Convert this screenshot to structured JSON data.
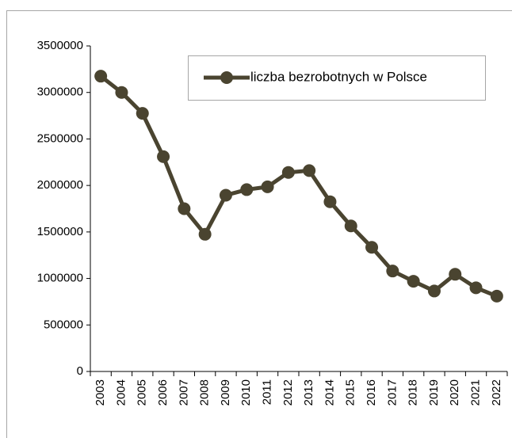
{
  "chart_data": {
    "type": "line",
    "categories": [
      "2003",
      "2004",
      "2005",
      "2006",
      "2007",
      "2008",
      "2009",
      "2010",
      "2011",
      "2012",
      "2013",
      "2014",
      "2015",
      "2016",
      "2017",
      "2018",
      "2019",
      "2020",
      "2021",
      "2022"
    ],
    "series": [
      {
        "name": "liczba bezrobotnych w Polsce",
        "color": "#4a4430",
        "values": [
          3175000,
          3000000,
          2775000,
          2310000,
          1750000,
          1475000,
          1895000,
          1955000,
          1985000,
          2140000,
          2160000,
          1825000,
          1565000,
          1335000,
          1080000,
          970000,
          865000,
          1045000,
          900000,
          810000
        ]
      }
    ],
    "ylim": [
      0,
      3500000
    ],
    "yticks": [
      0,
      500000,
      1000000,
      1500000,
      2000000,
      2500000,
      3000000,
      3500000
    ],
    "grid": false,
    "legend": "top-right"
  }
}
